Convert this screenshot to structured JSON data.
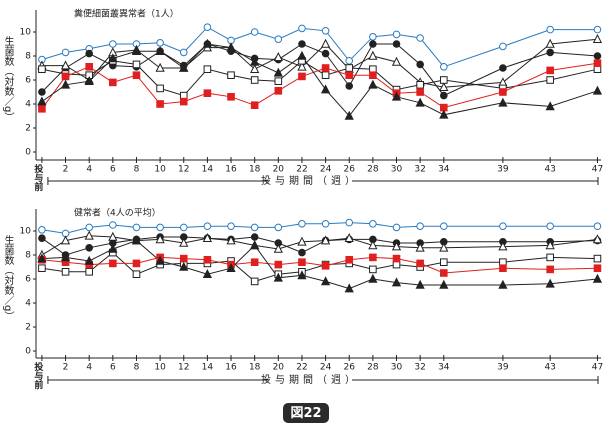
{
  "chart_data": [
    {
      "type": "line",
      "title": "糞便細菌叢異常者（1人）",
      "ylabel": "生菌数（対数／g）",
      "xlabel": "投与期間（週）",
      "x": [
        0,
        2,
        4,
        6,
        8,
        10,
        12,
        14,
        16,
        18,
        20,
        22,
        24,
        26,
        28,
        30,
        32,
        34,
        39,
        43,
        47
      ],
      "xlim": [
        -0.5,
        47.3
      ],
      "xticks": [
        {
          "value": 0,
          "label": "投与前"
        },
        2,
        4,
        6,
        8,
        10,
        12,
        14,
        16,
        18,
        20,
        22,
        24,
        26,
        28,
        30,
        32,
        34,
        39,
        43,
        47
      ],
      "ylim": [
        0,
        11.5
      ],
      "yticks": [
        0,
        2,
        4,
        6,
        8,
        10
      ],
      "series": [
        {
          "color": "#2a7bbf",
          "marker": "circle-open",
          "values": [
            7.7,
            8.3,
            8.6,
            9.0,
            9.0,
            9.1,
            8.3,
            10.4,
            9.3,
            10.0,
            9.4,
            10.3,
            10.1,
            7.6,
            9.6,
            9.8,
            9.5,
            7.1,
            8.8,
            10.2,
            10.2
          ]
        },
        {
          "color": "#222222",
          "marker": "circle-filled",
          "values": [
            5.0,
            7.0,
            8.2,
            7.2,
            7.1,
            8.4,
            7.2,
            9.0,
            8.4,
            7.8,
            7.7,
            9.0,
            8.2,
            5.5,
            9.0,
            9.0,
            7.3,
            4.7,
            7.0,
            8.3,
            8.0
          ]
        },
        {
          "color": "#222222",
          "marker": "triangle-open",
          "values": [
            7.2,
            7.2,
            6.0,
            8.3,
            8.5,
            7.0,
            7.0,
            8.7,
            8.7,
            6.9,
            7.9,
            7.1,
            9.0,
            6.9,
            8.0,
            7.5,
            5.8,
            5.4,
            5.8,
            9.0,
            9.4
          ]
        },
        {
          "color": "#222222",
          "marker": "square-open",
          "values": [
            6.9,
            6.5,
            6.4,
            7.6,
            7.3,
            5.3,
            4.7,
            6.9,
            6.4,
            6.0,
            5.9,
            7.6,
            6.4,
            7.0,
            6.9,
            5.2,
            5.6,
            6.0,
            5.3,
            6.0,
            6.9
          ]
        },
        {
          "color": "#e02020",
          "marker": "square-filled",
          "values": [
            3.6,
            6.3,
            7.1,
            5.8,
            6.4,
            4.0,
            4.2,
            4.9,
            4.6,
            3.9,
            5.1,
            6.3,
            7.0,
            6.4,
            6.4,
            4.9,
            5.0,
            3.7,
            5.0,
            6.8,
            7.4
          ]
        },
        {
          "color": "#222222",
          "marker": "triangle-filled",
          "values": [
            4.2,
            5.6,
            5.9,
            7.8,
            8.4,
            8.4,
            7.0,
            9.0,
            8.7,
            7.5,
            6.6,
            8.0,
            5.2,
            3.0,
            5.6,
            4.6,
            4.1,
            3.1,
            4.1,
            3.8,
            5.1
          ]
        }
      ]
    },
    {
      "type": "line",
      "title": "健常者（4人の平均）",
      "ylabel": "生菌数（対数／g）",
      "xlabel": "投与期間（週）",
      "x": [
        0,
        2,
        4,
        6,
        8,
        10,
        12,
        14,
        16,
        18,
        20,
        22,
        24,
        26,
        28,
        30,
        32,
        34,
        39,
        43,
        47
      ],
      "xlim": [
        -0.5,
        47.3
      ],
      "xticks": [
        {
          "value": 0,
          "label": "投与前"
        },
        2,
        4,
        6,
        8,
        10,
        12,
        14,
        16,
        18,
        20,
        22,
        24,
        26,
        28,
        30,
        32,
        34,
        39,
        43,
        47
      ],
      "ylim": [
        0,
        11.5
      ],
      "yticks": [
        0,
        2,
        4,
        6,
        8,
        10
      ],
      "series": [
        {
          "color": "#2a7bbf",
          "marker": "circle-open",
          "values": [
            10.1,
            9.8,
            10.3,
            10.5,
            10.3,
            10.3,
            10.3,
            10.4,
            10.4,
            10.3,
            10.3,
            10.6,
            10.6,
            10.7,
            10.6,
            10.3,
            10.4,
            10.4,
            10.4,
            10.4,
            10.4
          ]
        },
        {
          "color": "#222222",
          "marker": "circle-filled",
          "values": [
            9.4,
            8.0,
            8.6,
            9.0,
            9.3,
            9.5,
            9.5,
            9.4,
            9.3,
            9.5,
            9.0,
            8.2,
            9.2,
            9.3,
            9.3,
            9.0,
            9.0,
            9.1,
            9.1,
            9.1,
            9.2
          ]
        },
        {
          "color": "#222222",
          "marker": "triangle-open",
          "values": [
            8.0,
            9.2,
            9.6,
            9.5,
            9.2,
            9.3,
            9.0,
            9.4,
            9.2,
            8.8,
            8.5,
            9.1,
            9.2,
            9.4,
            8.8,
            8.7,
            8.6,
            8.6,
            8.7,
            8.8,
            9.3
          ]
        },
        {
          "color": "#222222",
          "marker": "square-open",
          "values": [
            6.9,
            6.6,
            6.6,
            8.2,
            6.4,
            7.2,
            7.3,
            7.3,
            7.5,
            5.8,
            6.4,
            6.6,
            7.2,
            7.3,
            6.8,
            7.2,
            7.0,
            7.4,
            7.4,
            7.8,
            7.7
          ]
        },
        {
          "color": "#e02020",
          "marker": "square-filled",
          "values": [
            7.6,
            7.4,
            7.2,
            7.3,
            7.3,
            7.8,
            7.7,
            7.6,
            7.2,
            7.4,
            7.2,
            7.4,
            7.1,
            7.6,
            7.8,
            7.7,
            7.3,
            6.5,
            6.9,
            6.8,
            6.9
          ]
        },
        {
          "color": "#222222",
          "marker": "triangle-filled",
          "values": [
            7.7,
            7.8,
            7.5,
            8.5,
            9.2,
            7.5,
            7.0,
            6.4,
            6.9,
            8.8,
            6.1,
            6.3,
            5.8,
            5.2,
            6.0,
            5.7,
            5.5,
            5.5,
            5.5,
            5.6,
            6.0
          ]
        }
      ]
    }
  ],
  "figure_label": "図22"
}
